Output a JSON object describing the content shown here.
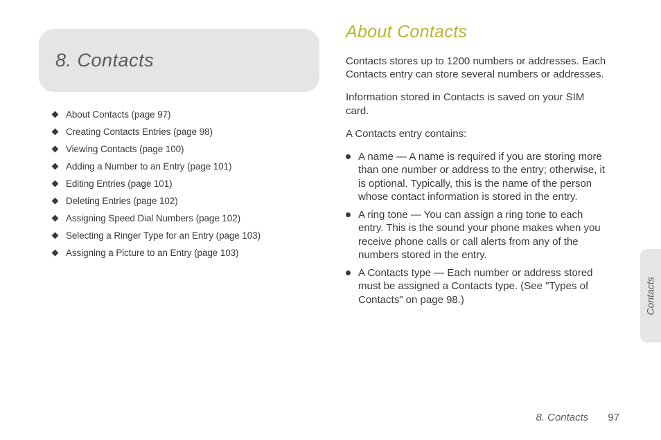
{
  "chapter": {
    "title": "8.  Contacts"
  },
  "toc": [
    "About Contacts (page 97)",
    "Creating Contacts Entries (page 98)",
    "Viewing Contacts (page 100)",
    "Adding a Number to an Entry (page 101)",
    "Editing Entries (page 101)",
    "Deleting Entries (page 102)",
    "Assigning Speed Dial Numbers (page 102)",
    "Selecting a Ringer Type for an Entry (page 103)",
    "Assigning a Picture to an Entry (page 103)"
  ],
  "section": {
    "heading": "About Contacts",
    "para1": "Contacts stores up to 1200 numbers or addresses. Each Contacts entry can store several numbers or addresses.",
    "para2": "Information stored in Contacts is saved on your SIM card.",
    "para3": "A Contacts entry contains:",
    "items": [
      "A name — A name is required if you are storing more than one number or address to the entry; otherwise, it is optional. Typically, this is the name of the person whose contact information is stored in the entry.",
      "A ring tone — You can assign a ring tone to each entry. This is the sound your phone makes when you receive phone calls or call alerts from any of the numbers stored in the entry.",
      "A Contacts type — Each number or address stored must be assigned a Contacts type. (See \"Types of Contacts\" on page 98.)"
    ]
  },
  "sidetab": "Contacts",
  "footer": {
    "chapter": "8. Contacts",
    "page": "97"
  },
  "colors": {
    "accent": "#b9b430",
    "box_bg": "#e5e5e3",
    "text": "#3a3a39",
    "muted": "#5a5a58"
  }
}
